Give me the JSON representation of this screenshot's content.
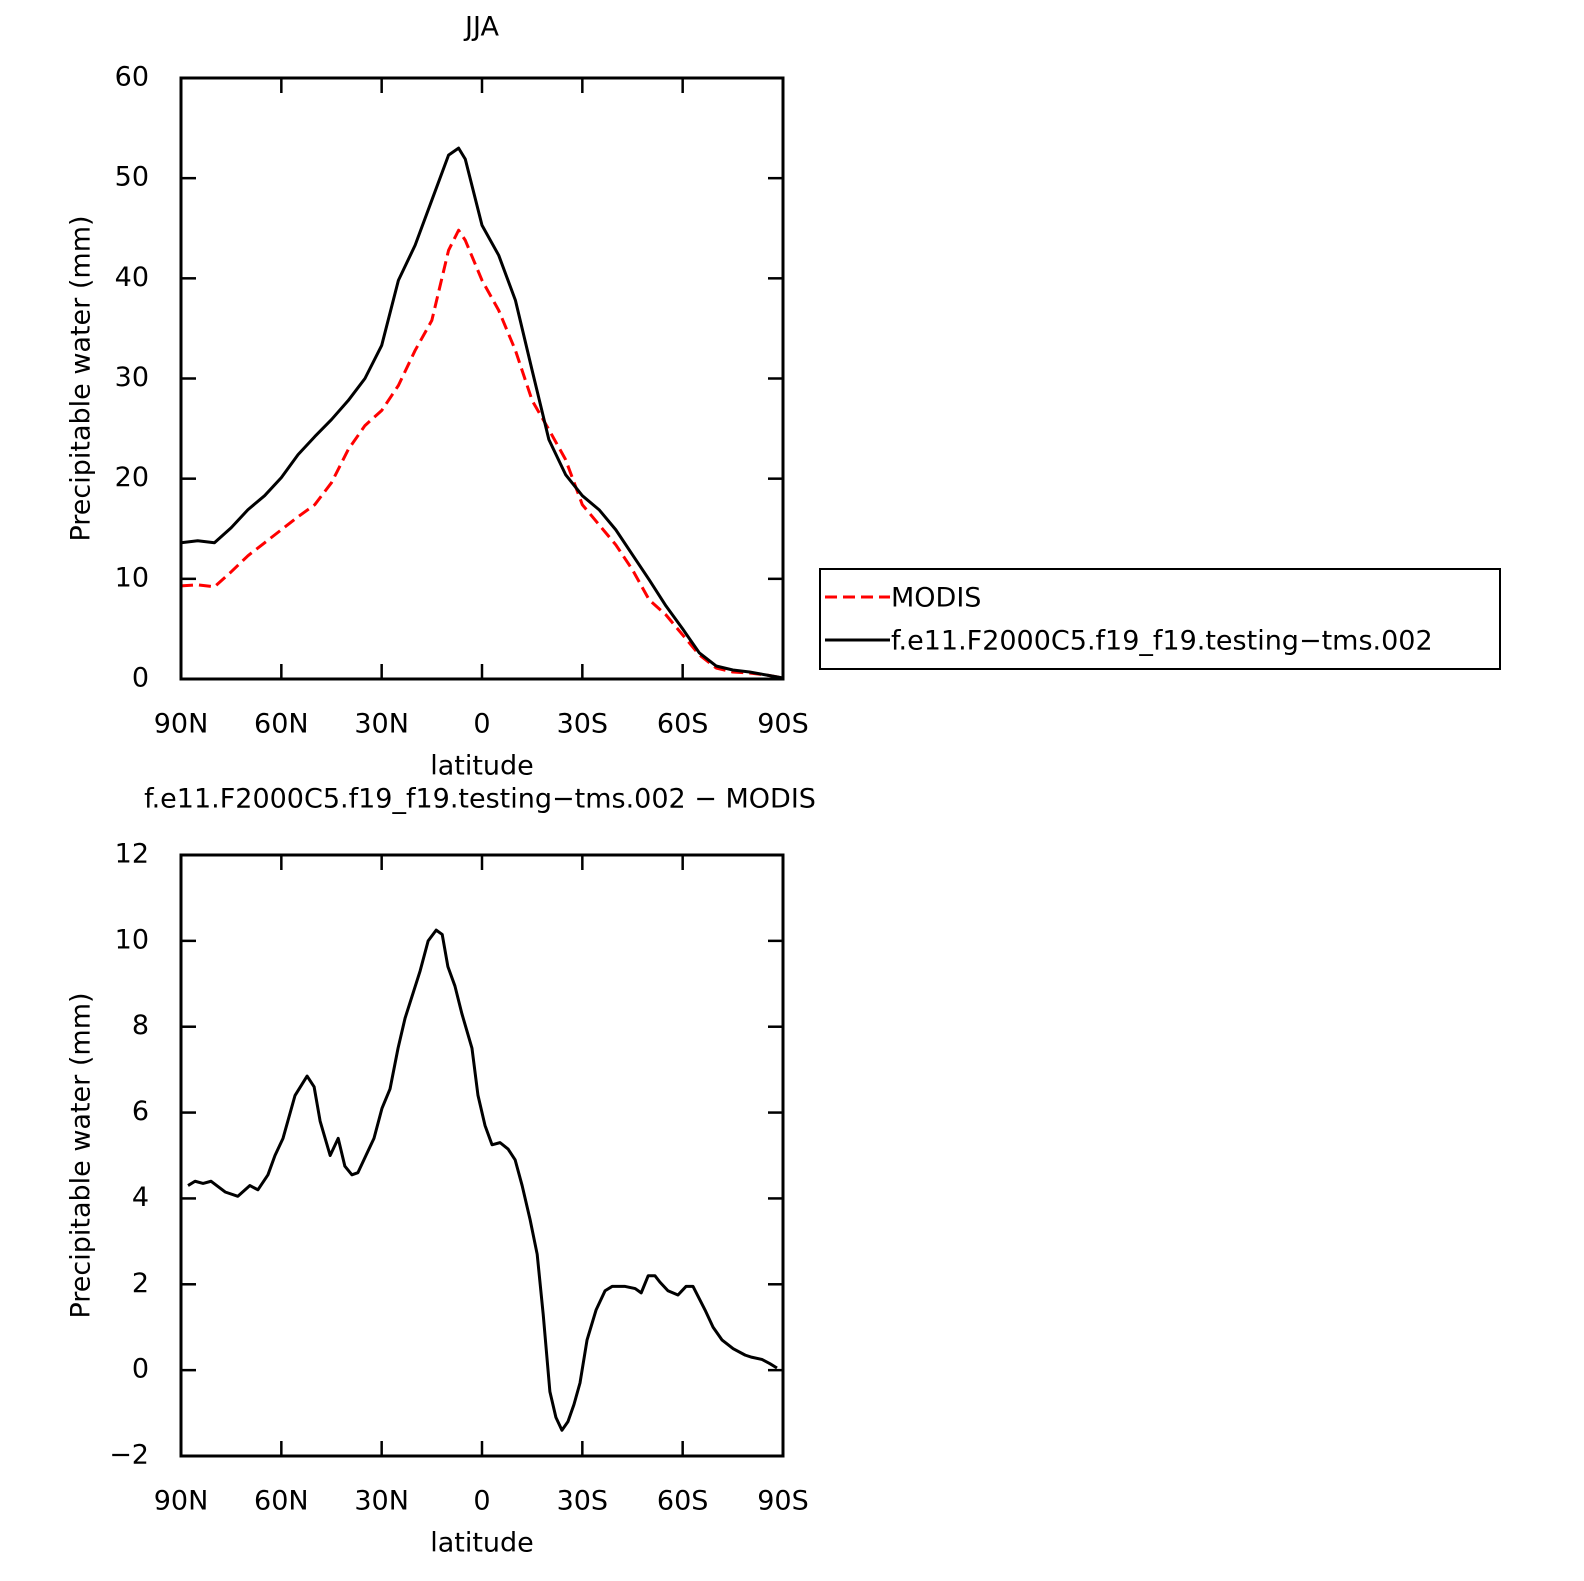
{
  "chart_data": [
    {
      "type": "line",
      "title": "JJA",
      "xlabel": "latitude",
      "ylabel": "Precipitable water (mm)",
      "x": [
        90,
        85,
        80,
        75,
        70,
        65,
        60,
        55,
        50,
        45,
        40,
        35,
        30,
        25,
        20,
        15,
        10,
        7,
        5,
        0,
        -5,
        -10,
        -15,
        -20,
        -25,
        -30,
        -35,
        -40,
        -45,
        -50,
        -55,
        -60,
        -65,
        -70,
        -75,
        -80,
        -85,
        -90
      ],
      "series": [
        {
          "name": "MODIS",
          "color": "#ff0000",
          "line_style": "dashed",
          "values": [
            9.3,
            9.4,
            9.2,
            10.7,
            12.3,
            13.6,
            14.9,
            16.2,
            17.4,
            19.6,
            22.9,
            25.3,
            26.8,
            29.3,
            32.8,
            35.8,
            42.8,
            44.8,
            43.8,
            39.8,
            36.8,
            32.8,
            27.8,
            24.9,
            21.9,
            17.4,
            15.4,
            13.4,
            10.9,
            7.9,
            6.4,
            4.4,
            2.4,
            1.1,
            0.7,
            0.6,
            0.4,
            0.1
          ]
        },
        {
          "name": "f.e11.F2000C5.f19_f19.testing−tms.002",
          "color": "#000000",
          "line_style": "solid",
          "values": [
            13.6,
            13.8,
            13.6,
            15.1,
            16.9,
            18.3,
            20.1,
            22.4,
            24.2,
            25.9,
            27.8,
            30.0,
            33.3,
            39.8,
            43.3,
            47.8,
            52.3,
            53.0,
            51.9,
            45.3,
            42.3,
            37.8,
            30.8,
            23.9,
            20.4,
            18.3,
            16.9,
            14.9,
            12.4,
            9.9,
            7.3,
            5.0,
            2.6,
            1.3,
            0.9,
            0.7,
            0.4,
            0.1
          ]
        }
      ],
      "xlim": [
        90,
        -90
      ],
      "xticks": [
        {
          "value": 90,
          "label": "90N"
        },
        {
          "value": 60,
          "label": "60N"
        },
        {
          "value": 30,
          "label": "30N"
        },
        0,
        {
          "value": -30,
          "label": "30S"
        },
        {
          "value": -60,
          "label": "60S"
        },
        {
          "value": -90,
          "label": "90S"
        }
      ],
      "ylim": [
        0,
        60
      ],
      "yticks": [
        0,
        10,
        20,
        30,
        40,
        50,
        60
      ],
      "legend": "right"
    },
    {
      "type": "line",
      "title": "f.e11.F2000C5.f19_f19.testing−tms.002 − MODIS",
      "xlabel": "latitude",
      "ylabel": "Precipitable water (mm)",
      "x": [
        87.9,
        85.8,
        83.4,
        81,
        76.8,
        73,
        69.4,
        67,
        64,
        61.9,
        59.5,
        55.9,
        52.3,
        50.2,
        48.4,
        45.4,
        43,
        41,
        38.9,
        37.1,
        35,
        32.3,
        29.9,
        27.5,
        25.1,
        23,
        18.5,
        16.1,
        13.7,
        11.9,
        10.2,
        8.1,
        6,
        3,
        1.2,
        -0.9,
        -3,
        -5.4,
        -7.8,
        -9.9,
        -12,
        -14.4,
        -16.5,
        -18.3,
        -20.3,
        -22.1,
        -23.9,
        -25.7,
        -27.5,
        -29.3,
        -31.4,
        -34.1,
        -36.8,
        -38.9,
        -42.8,
        -45.8,
        -47.6,
        -49.7,
        -51.7,
        -53.2,
        -55.6,
        -58.6,
        -61,
        -63.1,
        -66.7,
        -69.1,
        -71.8,
        -75.1,
        -78.7,
        -80.7,
        -83.7,
        -86.1,
        -88.2
      ],
      "series": [
        {
          "color": "#000000",
          "line_style": "solid",
          "values": [
            4.3,
            4.4,
            4.35,
            4.4,
            4.15,
            4.05,
            4.3,
            4.2,
            4.55,
            5.0,
            5.4,
            6.4,
            6.85,
            6.6,
            5.8,
            5.0,
            5.4,
            4.75,
            4.55,
            4.6,
            4.95,
            5.4,
            6.1,
            6.55,
            7.5,
            8.2,
            9.3,
            10.0,
            10.25,
            10.15,
            9.4,
            8.95,
            8.3,
            7.5,
            6.4,
            5.7,
            5.25,
            5.3,
            5.15,
            4.9,
            4.3,
            3.5,
            2.7,
            1.3,
            -0.5,
            -1.1,
            -1.4,
            -1.2,
            -0.8,
            -0.3,
            0.7,
            1.4,
            1.85,
            1.95,
            1.95,
            1.9,
            1.8,
            2.2,
            2.2,
            2.05,
            1.85,
            1.75,
            1.95,
            1.95,
            1.4,
            1.0,
            0.7,
            0.5,
            0.35,
            0.3,
            0.25,
            0.15,
            0.05
          ]
        }
      ],
      "xlim": [
        90,
        -90
      ],
      "xticks": [
        {
          "value": 90,
          "label": "90N"
        },
        {
          "value": 60,
          "label": "60N"
        },
        {
          "value": 30,
          "label": "30N"
        },
        0,
        {
          "value": -30,
          "label": "30S"
        },
        {
          "value": -60,
          "label": "60S"
        },
        {
          "value": -90,
          "label": "90S"
        }
      ],
      "ylim": [
        -2,
        12
      ],
      "yticks": [
        {
          "value": -2,
          "label": "−2"
        },
        0,
        2,
        4,
        6,
        8,
        10,
        12
      ]
    }
  ]
}
